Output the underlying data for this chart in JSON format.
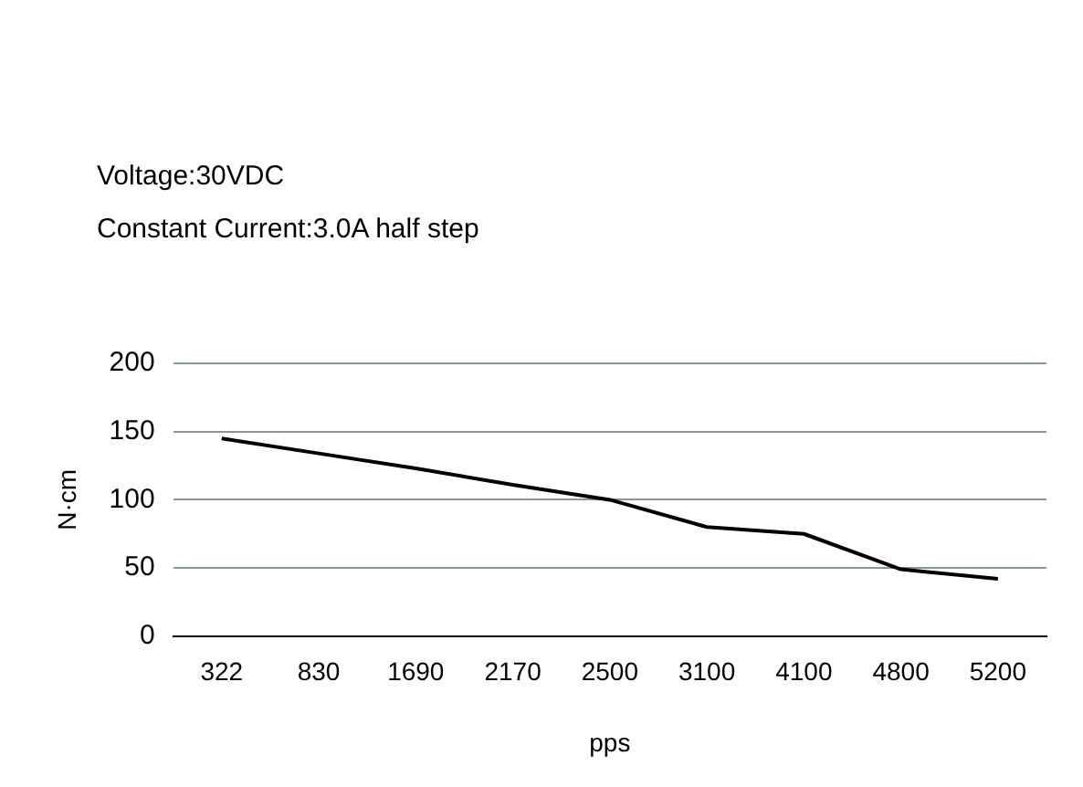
{
  "chart_data": {
    "type": "line",
    "annotations": [
      "Voltage:30VDC",
      "Constant Current:3.0A half step"
    ],
    "xlabel": "pps",
    "ylabel": "N·cm",
    "categories": [
      "322",
      "830",
      "1690",
      "2170",
      "2500",
      "3100",
      "4100",
      "4800",
      "5200"
    ],
    "series": [
      {
        "color": "#000000",
        "values": [
          145,
          134,
          123,
          111,
          100,
          80,
          75,
          49,
          42
        ]
      }
    ],
    "ylim": [
      0,
      200
    ],
    "yticks": [
      0,
      50,
      100,
      150,
      200
    ],
    "grid": "y",
    "legend": false,
    "marker": "none",
    "line_style": "solid"
  }
}
